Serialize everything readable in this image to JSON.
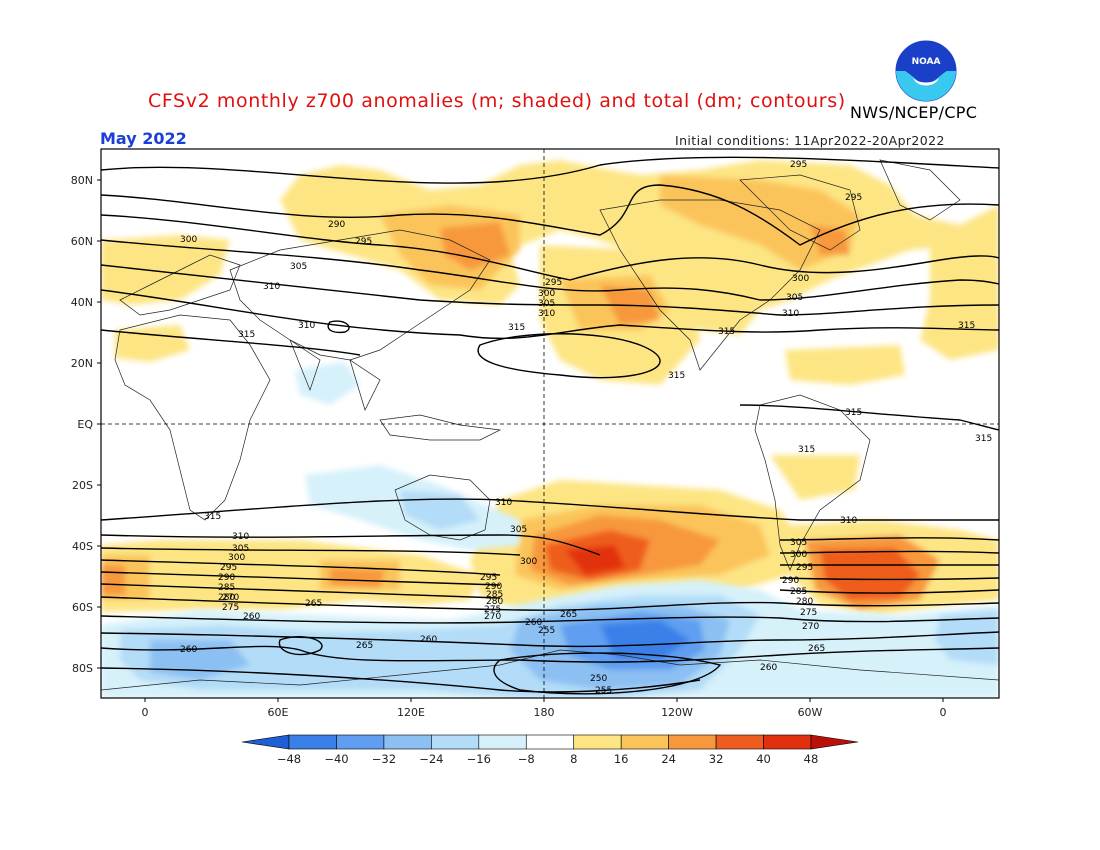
{
  "header": {
    "title": "CFSv2 monthly z700 anomalies (m; shaded) and total (dm; contours)",
    "agency": "NWS/NCEP/CPC",
    "month": "May 2022",
    "initial_conditions": "Initial conditions: 11Apr2022-20Apr2022"
  },
  "logo": {
    "text": "NOAA",
    "colors": [
      "#1a3fc8",
      "#38c8f0",
      "#ffffff"
    ]
  },
  "axes": {
    "lat_labels": [
      "80N",
      "60N",
      "40N",
      "20N",
      "EQ",
      "20S",
      "40S",
      "60S",
      "80S"
    ],
    "lon_labels": [
      "0",
      "60E",
      "120E",
      "180",
      "120W",
      "60W",
      "0"
    ]
  },
  "colorbar": {
    "ticks": [
      "-48",
      "-40",
      "-32",
      "-24",
      "-16",
      "-8",
      "8",
      "16",
      "24",
      "32",
      "40",
      "48"
    ],
    "colors": [
      "#1f5fd6",
      "#3a80e8",
      "#5f9ef0",
      "#8cc0f3",
      "#b2dcf7",
      "#d6f1fa",
      "#ffffff",
      "#fde584",
      "#fbc45a",
      "#f7983c",
      "#ef5d1e",
      "#e2300e",
      "#b81208"
    ]
  },
  "contour_labels": [
    "290",
    "295",
    "300",
    "305",
    "310",
    "315",
    "260",
    "265",
    "270",
    "275",
    "280",
    "285",
    "255",
    "250"
  ]
}
